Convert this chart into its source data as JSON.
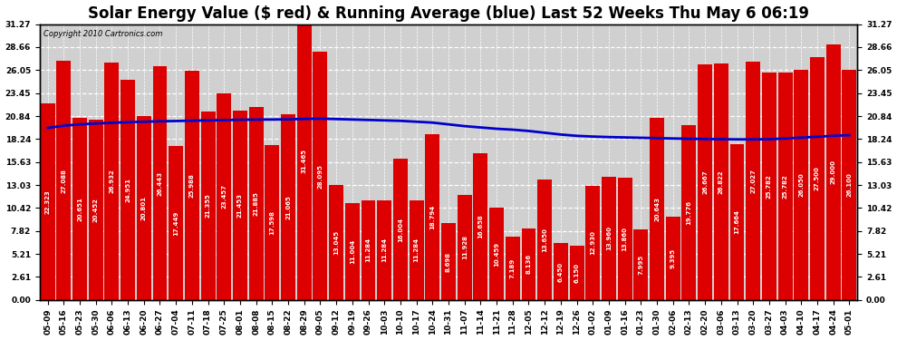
{
  "title": "Solar Energy Value ($ red) & Running Average (blue) Last 52 Weeks Thu May 6 06:19",
  "copyright": "Copyright 2010 Cartronics.com",
  "bar_color": "#dd0000",
  "line_color": "#0000cc",
  "background_color": "#ffffff",
  "plot_bg_color": "#d0d0d0",
  "ylim": [
    0,
    31.27
  ],
  "yticks": [
    0.0,
    2.61,
    5.21,
    7.82,
    10.42,
    13.03,
    15.63,
    18.24,
    20.84,
    23.45,
    26.05,
    28.66,
    31.27
  ],
  "categories": [
    "05-09",
    "05-16",
    "05-23",
    "05-30",
    "06-06",
    "06-13",
    "06-20",
    "06-27",
    "07-04",
    "07-11",
    "07-18",
    "07-25",
    "08-01",
    "08-08",
    "08-15",
    "08-22",
    "08-29",
    "09-05",
    "09-12",
    "09-19",
    "09-26",
    "10-03",
    "10-10",
    "10-17",
    "10-24",
    "10-31",
    "11-07",
    "11-14",
    "11-21",
    "11-28",
    "12-05",
    "12-12",
    "12-19",
    "12-26",
    "01-02",
    "01-09",
    "01-16",
    "01-23",
    "01-30",
    "02-06",
    "02-13",
    "02-20",
    "03-06",
    "03-13",
    "03-20",
    "03-27",
    "04-03",
    "04-10",
    "04-17",
    "04-24",
    "05-01"
  ],
  "values": [
    22.323,
    27.088,
    20.651,
    20.452,
    26.932,
    24.951,
    20.801,
    26.443,
    17.449,
    25.988,
    21.355,
    23.457,
    21.453,
    21.885,
    17.598,
    21.065,
    31.465,
    28.095,
    13.045,
    11.004,
    11.284,
    11.284,
    16.004,
    11.284,
    18.794,
    8.698,
    11.928,
    16.658,
    10.459,
    7.189,
    8.1364,
    13.65,
    6.45,
    6.15,
    12.93,
    13.96,
    13.86,
    7.995,
    20.643,
    9.395,
    19.776,
    26.667,
    26.822,
    17.664,
    27.027,
    25.782,
    25.782,
    26.05,
    27.5,
    29.0,
    26.1
  ],
  "running_avg": [
    19.5,
    19.75,
    19.9,
    20.0,
    20.08,
    20.15,
    20.2,
    20.25,
    20.28,
    20.32,
    20.35,
    20.38,
    20.42,
    20.44,
    20.45,
    20.47,
    20.52,
    20.55,
    20.5,
    20.45,
    20.4,
    20.35,
    20.3,
    20.2,
    20.1,
    19.9,
    19.7,
    19.55,
    19.4,
    19.3,
    19.15,
    18.95,
    18.75,
    18.6,
    18.52,
    18.46,
    18.42,
    18.38,
    18.34,
    18.3,
    18.27,
    18.24,
    18.22,
    18.2,
    18.2,
    18.22,
    18.3,
    18.4,
    18.5,
    18.6,
    18.68
  ],
  "title_fontsize": 12,
  "tick_fontsize": 6.5,
  "copyright_fontsize": 6,
  "bar_label_fontsize": 5
}
